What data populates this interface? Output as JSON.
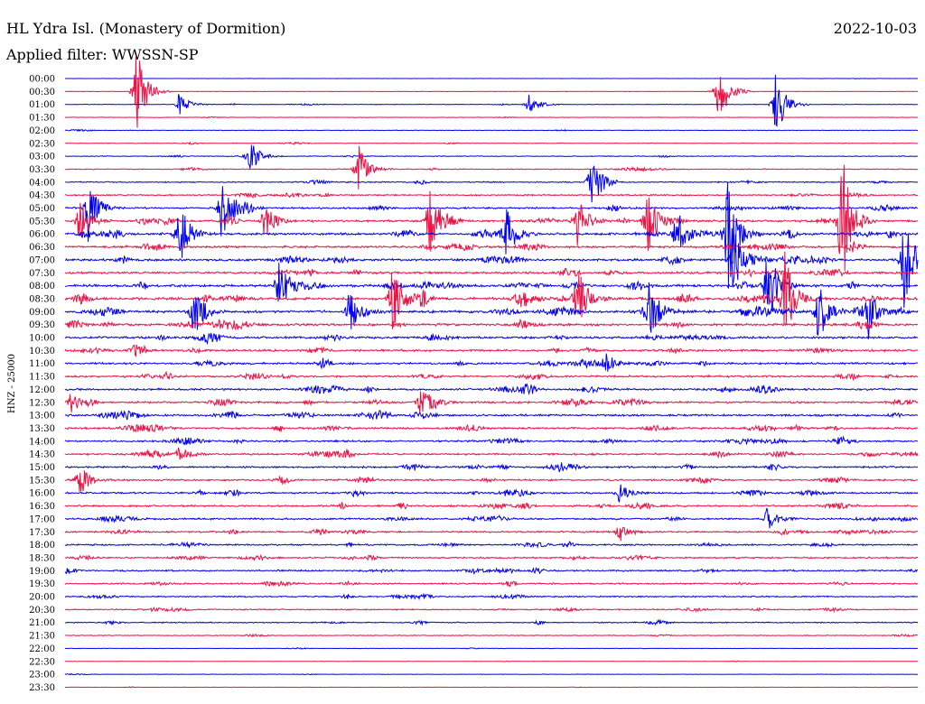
{
  "chart_data": {
    "type": "line",
    "title": "HL Ydra Isl. (Monastery of Dormition)",
    "subtitle": "Applied filter: WWSSN-SP",
    "date": "2022-10-03",
    "ylabel": "HNZ - 25000",
    "row_times": [
      "00:00",
      "00:30",
      "01:00",
      "01:30",
      "02:00",
      "02:30",
      "03:00",
      "03:30",
      "04:00",
      "04:30",
      "05:00",
      "05:30",
      "06:00",
      "06:30",
      "07:00",
      "07:30",
      "08:00",
      "08:30",
      "09:00",
      "09:30",
      "10:00",
      "10:30",
      "11:00",
      "11:30",
      "12:00",
      "12:30",
      "13:00",
      "13:30",
      "14:00",
      "14:30",
      "15:00",
      "15:30",
      "16:00",
      "16:30",
      "17:00",
      "17:30",
      "18:00",
      "18:30",
      "19:00",
      "19:30",
      "20:00",
      "20:30",
      "21:00",
      "21:30",
      "22:00",
      "22:30",
      "23:00",
      "23:30"
    ],
    "row_colors": [
      "#0000ee",
      "#ee1144"
    ],
    "background_noise_by_row": [
      0.1,
      0.2,
      0.3,
      0.25,
      0.25,
      0.3,
      0.4,
      0.45,
      0.6,
      0.7,
      0.9,
      1.0,
      1.1,
      1.1,
      1.1,
      1.1,
      1.2,
      1.3,
      1.3,
      1.2,
      1.1,
      1.1,
      1.0,
      1.0,
      1.0,
      1.0,
      1.0,
      0.95,
      0.9,
      0.9,
      0.9,
      0.9,
      0.9,
      0.9,
      0.85,
      0.85,
      0.8,
      0.8,
      0.8,
      0.75,
      0.7,
      0.65,
      0.55,
      0.35,
      0.2,
      0.2,
      0.2,
      0.2
    ],
    "events": [
      {
        "row": 1,
        "minute": 2.5,
        "amplitude": 55
      },
      {
        "row": 2,
        "minute": 25,
        "amplitude": 40
      },
      {
        "row": 2,
        "minute": 4,
        "amplitude": 14
      },
      {
        "row": 2,
        "minute": 16.3,
        "amplitude": 12
      },
      {
        "row": 1,
        "minute": 23,
        "amplitude": 40
      },
      {
        "row": 7,
        "minute": 10.3,
        "amplitude": 30
      },
      {
        "row": 6,
        "minute": 6.5,
        "amplitude": 18
      },
      {
        "row": 10,
        "minute": 0.8,
        "amplitude": 40
      },
      {
        "row": 11,
        "minute": 0.5,
        "amplitude": 28
      },
      {
        "row": 10,
        "minute": 5.5,
        "amplitude": 38
      },
      {
        "row": 11,
        "minute": 7,
        "amplitude": 24
      },
      {
        "row": 11,
        "minute": 12.8,
        "amplitude": 42
      },
      {
        "row": 11,
        "minute": 18,
        "amplitude": 30
      },
      {
        "row": 11,
        "minute": 27.3,
        "amplitude": 90
      },
      {
        "row": 12,
        "minute": 15.5,
        "amplitude": 36
      },
      {
        "row": 8,
        "minute": 18.5,
        "amplitude": 34
      },
      {
        "row": 11,
        "minute": 20.5,
        "amplitude": 40
      },
      {
        "row": 12,
        "minute": 21.5,
        "amplitude": 32
      },
      {
        "row": 12,
        "minute": 23.3,
        "amplitude": 70
      },
      {
        "row": 14,
        "minute": 23.5,
        "amplitude": 42
      },
      {
        "row": 14,
        "minute": 29.5,
        "amplitude": 65
      },
      {
        "row": 12,
        "minute": 4,
        "amplitude": 44
      },
      {
        "row": 18,
        "minute": 4.5,
        "amplitude": 38
      },
      {
        "row": 18,
        "minute": 10,
        "amplitude": 30
      },
      {
        "row": 17,
        "minute": 11.5,
        "amplitude": 40
      },
      {
        "row": 18,
        "minute": 20.5,
        "amplitude": 50
      },
      {
        "row": 16,
        "minute": 7.5,
        "amplitude": 36
      },
      {
        "row": 17,
        "minute": 18,
        "amplitude": 42
      },
      {
        "row": 16,
        "minute": 24.7,
        "amplitude": 55
      },
      {
        "row": 17,
        "minute": 25.3,
        "amplitude": 60
      },
      {
        "row": 18,
        "minute": 26.5,
        "amplitude": 40
      },
      {
        "row": 18,
        "minute": 28.2,
        "amplitude": 34
      },
      {
        "row": 22,
        "minute": 19,
        "amplitude": 12
      },
      {
        "row": 25,
        "minute": 12.5,
        "amplitude": 16
      },
      {
        "row": 25,
        "minute": 0.2,
        "amplitude": 14
      },
      {
        "row": 29,
        "minute": 4,
        "amplitude": 10
      },
      {
        "row": 31,
        "minute": 0.5,
        "amplitude": 12
      },
      {
        "row": 32,
        "minute": 19.5,
        "amplitude": 12
      },
      {
        "row": 35,
        "minute": 19.5,
        "amplitude": 12
      },
      {
        "row": 34,
        "minute": 24.7,
        "amplitude": 14
      }
    ]
  }
}
